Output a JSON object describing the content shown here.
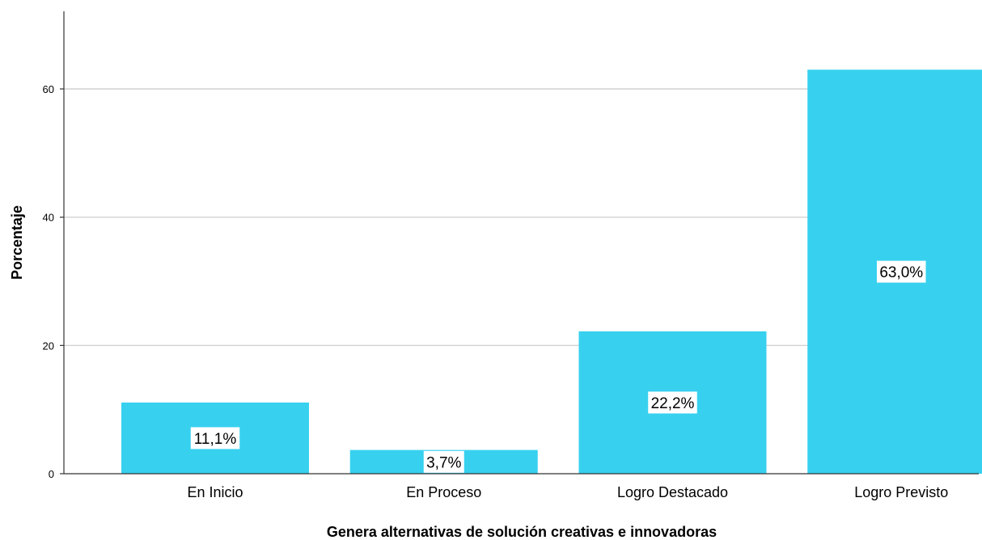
{
  "chart_data": {
    "type": "bar",
    "xlabel": "Genera alternativas de solución creativas e innovadoras",
    "ylabel": "Porcentaje",
    "categories": [
      "En Inicio",
      "En Proceso",
      "Logro Destacado",
      "Logro Previsto"
    ],
    "values": [
      11.1,
      3.7,
      22.2,
      63.0
    ],
    "data_labels": [
      "11,1%",
      "3,7%",
      "22,2%",
      "63,0%"
    ],
    "ylim": [
      0,
      72
    ],
    "yticks": [
      0,
      20,
      40,
      60
    ],
    "ytick_labels": [
      "0",
      "20",
      "40",
      "60"
    ],
    "grid": "horizontal",
    "bar_color": "#37D1EF",
    "gridline_color": "#c8c8c8",
    "axis_color": "#333333"
  }
}
